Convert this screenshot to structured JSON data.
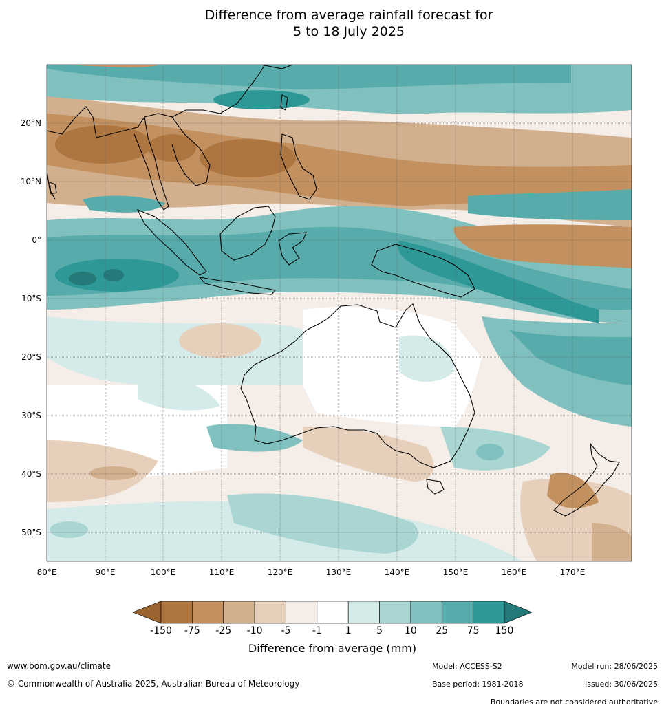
{
  "title": {
    "line1": "Difference from average rainfall forecast for",
    "line2": "5 to 18 July 2025"
  },
  "axes": {
    "lon_labels": [
      "80°E",
      "90°E",
      "100°E",
      "110°E",
      "120°E",
      "130°E",
      "140°E",
      "150°E",
      "160°E",
      "170°E"
    ],
    "lat_labels": [
      "20°N",
      "10°N",
      "0°",
      "10°S",
      "20°S",
      "30°S",
      "40°S",
      "50°S"
    ]
  },
  "colorbar": {
    "tick_labels": [
      "-150",
      "-75",
      "-25",
      "-10",
      "-5",
      "-1",
      "1",
      "5",
      "10",
      "25",
      "75",
      "150"
    ],
    "label": "Difference from average (mm)",
    "colors": [
      "#9a6431",
      "#ad7540",
      "#c2915f",
      "#d2b08e",
      "#e6cfbb",
      "#f5ede8",
      "#ffffff",
      "#d5ebe9",
      "#a9d5d3",
      "#80c1bf",
      "#57acab",
      "#2e9896",
      "#237a78"
    ]
  },
  "footer": {
    "website": "www.bom.gov.au/climate",
    "copyright": "© Commonwealth of Australia 2025, Australian Bureau of Meteorology",
    "model": "Model: ACCESS-S2",
    "model_run": "Model run: 28/06/2025",
    "base_period": "Base period: 1981-2018",
    "issued": "Issued: 30/06/2025",
    "boundaries": "Boundaries are not considered authoritative"
  }
}
